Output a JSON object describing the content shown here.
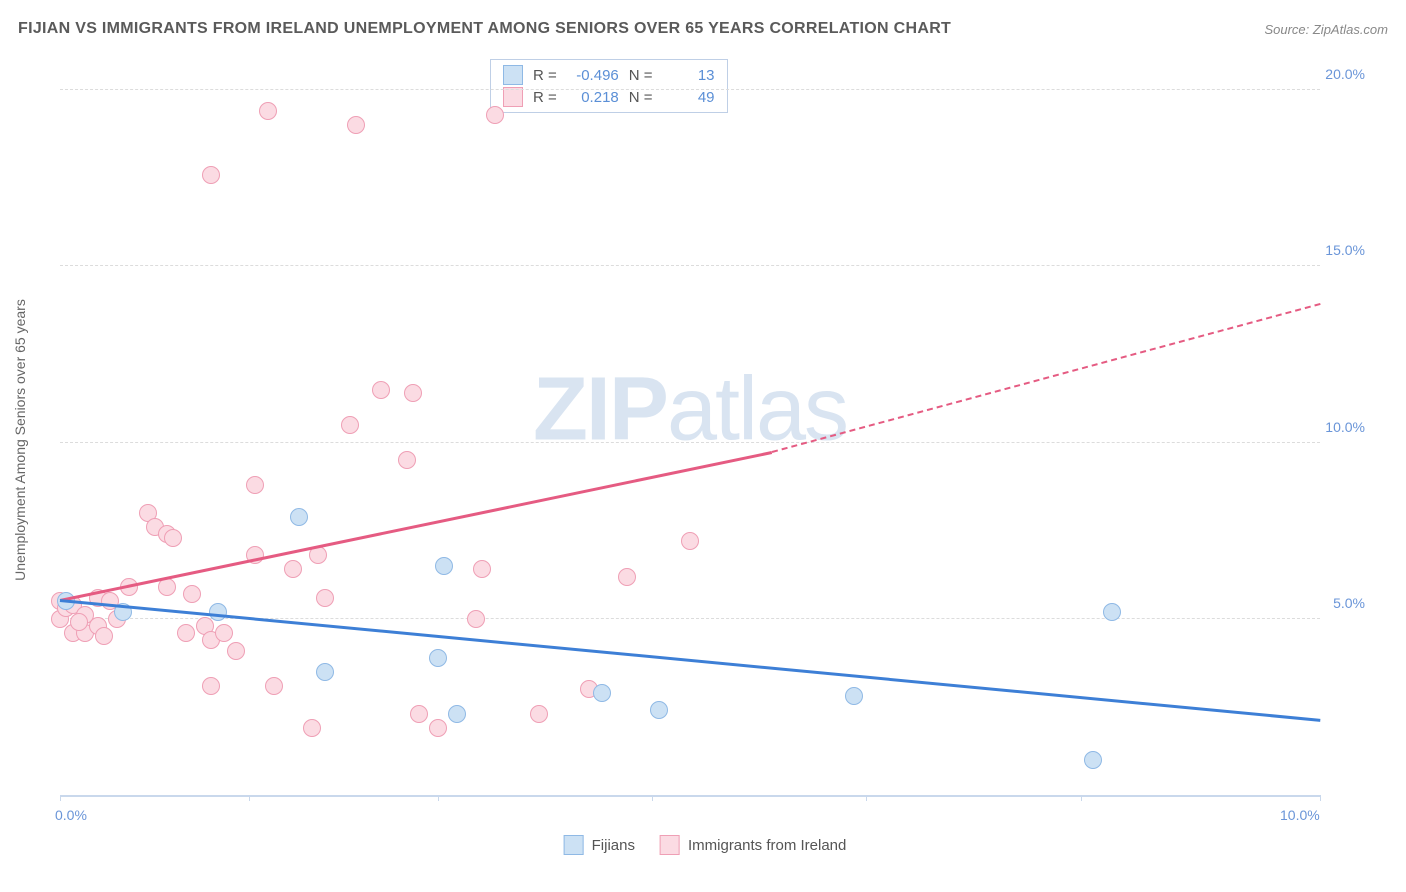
{
  "header": {
    "title": "FIJIAN VS IMMIGRANTS FROM IRELAND UNEMPLOYMENT AMONG SENIORS OVER 65 YEARS CORRELATION CHART",
    "source_prefix": "Source: ",
    "source": "ZipAtlas.com"
  },
  "chart": {
    "type": "scatter",
    "ylabel": "Unemployment Among Seniors over 65 years",
    "xlim": [
      0,
      10
    ],
    "ylim": [
      0,
      21
    ],
    "xtick_positions": [
      0,
      1.5,
      3.0,
      4.7,
      6.4,
      8.1,
      10.0
    ],
    "xtick_labels": {
      "0": "0.0%",
      "10": "10.0%"
    },
    "ytick_positions": [
      5,
      10,
      15,
      20
    ],
    "ytick_labels": {
      "5": "5.0%",
      "10": "10.0%",
      "15": "15.0%",
      "20": "20.0%"
    },
    "background_color": "#ffffff",
    "grid_color": "#dcdcdc",
    "axis_color": "#c9d8ec",
    "tick_label_color": "#6a95d8",
    "watermark": {
      "text_bold": "ZIP",
      "text_light": "atlas",
      "color": "#d9e4f1"
    },
    "series": {
      "fijians": {
        "label": "Fijians",
        "fill": "#cce1f4",
        "stroke": "#8fb9e5",
        "trend_color": "#3d7fd6",
        "R": "-0.496",
        "N": "13",
        "trend": {
          "x1": 0,
          "y1": 5.5,
          "x2": 10,
          "y2": 2.1
        },
        "points": [
          [
            0.05,
            5.5
          ],
          [
            0.5,
            5.2
          ],
          [
            1.25,
            5.2
          ],
          [
            1.9,
            7.9
          ],
          [
            2.1,
            3.5
          ],
          [
            3.0,
            3.9
          ],
          [
            3.05,
            6.5
          ],
          [
            3.15,
            2.3
          ],
          [
            4.3,
            2.9
          ],
          [
            4.75,
            2.4
          ],
          [
            6.3,
            2.8
          ],
          [
            8.35,
            5.2
          ],
          [
            8.2,
            1.0
          ]
        ]
      },
      "ireland": {
        "label": "Immigrants from Ireland",
        "fill": "#fbdbe3",
        "stroke": "#ef9fb5",
        "trend_color": "#e55b82",
        "R": "0.218",
        "N": "49",
        "trend_solid": {
          "x1": 0,
          "y1": 5.5,
          "x2": 5.65,
          "y2": 9.7
        },
        "trend_dashed": {
          "x1": 5.65,
          "y1": 9.7,
          "x2": 10,
          "y2": 13.9
        },
        "points": [
          [
            0.0,
            5.5
          ],
          [
            0.0,
            5.0
          ],
          [
            0.05,
            5.3
          ],
          [
            0.1,
            5.4
          ],
          [
            0.1,
            4.6
          ],
          [
            0.2,
            4.6
          ],
          [
            0.2,
            5.1
          ],
          [
            0.3,
            5.6
          ],
          [
            0.3,
            4.8
          ],
          [
            0.35,
            4.5
          ],
          [
            0.4,
            5.5
          ],
          [
            0.55,
            5.9
          ],
          [
            0.7,
            8.0
          ],
          [
            0.75,
            7.6
          ],
          [
            0.85,
            7.4
          ],
          [
            0.85,
            5.9
          ],
          [
            0.9,
            7.3
          ],
          [
            1.0,
            4.6
          ],
          [
            1.05,
            5.7
          ],
          [
            1.15,
            4.8
          ],
          [
            1.2,
            3.1
          ],
          [
            1.2,
            4.4
          ],
          [
            1.2,
            17.6
          ],
          [
            1.3,
            4.6
          ],
          [
            1.4,
            4.1
          ],
          [
            1.55,
            8.8
          ],
          [
            1.55,
            6.8
          ],
          [
            1.65,
            19.4
          ],
          [
            1.7,
            3.1
          ],
          [
            1.85,
            6.4
          ],
          [
            2.0,
            1.9
          ],
          [
            2.05,
            6.8
          ],
          [
            2.1,
            5.6
          ],
          [
            2.3,
            10.5
          ],
          [
            2.35,
            19.0
          ],
          [
            2.55,
            11.5
          ],
          [
            2.75,
            9.5
          ],
          [
            2.8,
            11.4
          ],
          [
            2.85,
            2.3
          ],
          [
            3.0,
            1.9
          ],
          [
            3.3,
            5.0
          ],
          [
            3.35,
            6.4
          ],
          [
            3.45,
            19.3
          ],
          [
            3.8,
            2.3
          ],
          [
            4.2,
            3.0
          ],
          [
            4.5,
            6.2
          ],
          [
            5.0,
            7.2
          ],
          [
            0.15,
            4.9
          ],
          [
            0.45,
            5.0
          ]
        ]
      }
    },
    "legend_top": {
      "R_label": "R =",
      "N_label": "N ="
    },
    "marker_radius": 9,
    "marker_stroke_width": 1.5,
    "trend_width": 2.5
  }
}
